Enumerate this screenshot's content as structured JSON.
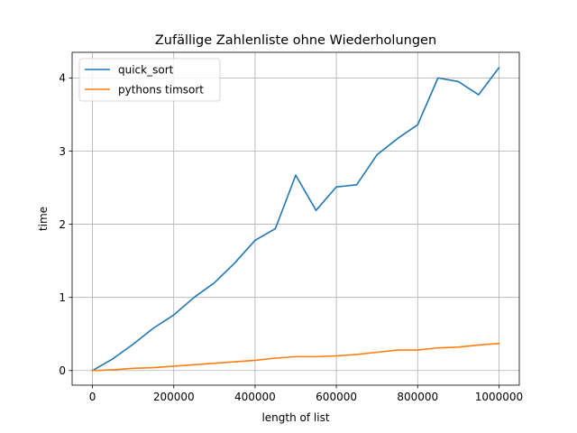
{
  "chart_data": {
    "type": "line",
    "title": "Zufällige Zahlenliste ohne Wiederholungen",
    "xlabel": "length of list",
    "ylabel": "time",
    "xlim": [
      -50000,
      1050000
    ],
    "ylim": [
      -0.2,
      4.35
    ],
    "xticks": [
      0,
      200000,
      400000,
      600000,
      800000,
      1000000
    ],
    "xtick_labels": [
      "0",
      "200000",
      "400000",
      "600000",
      "800000",
      "1000000"
    ],
    "yticks": [
      0,
      1,
      2,
      3,
      4
    ],
    "ytick_labels": [
      "0",
      "1",
      "2",
      "3",
      "4"
    ],
    "grid": true,
    "legend_position": "top-left",
    "x": [
      0,
      50000,
      100000,
      150000,
      200000,
      250000,
      300000,
      350000,
      400000,
      450000,
      500000,
      550000,
      600000,
      650000,
      700000,
      750000,
      800000,
      850000,
      900000,
      950000,
      1000000
    ],
    "series": [
      {
        "name": "quick_sort",
        "color": "#1f77b4",
        "values": [
          0.0,
          0.16,
          0.36,
          0.58,
          0.76,
          1.0,
          1.2,
          1.47,
          1.78,
          1.94,
          2.67,
          2.19,
          2.51,
          2.54,
          2.95,
          3.17,
          3.36,
          4.0,
          3.95,
          3.77,
          4.14
        ]
      },
      {
        "name": "pythons timsort",
        "color": "#ff7f0e",
        "values": [
          0.0,
          0.01,
          0.03,
          0.04,
          0.06,
          0.08,
          0.1,
          0.12,
          0.14,
          0.17,
          0.19,
          0.19,
          0.2,
          0.22,
          0.25,
          0.28,
          0.28,
          0.31,
          0.32,
          0.35,
          0.37
        ]
      }
    ]
  }
}
